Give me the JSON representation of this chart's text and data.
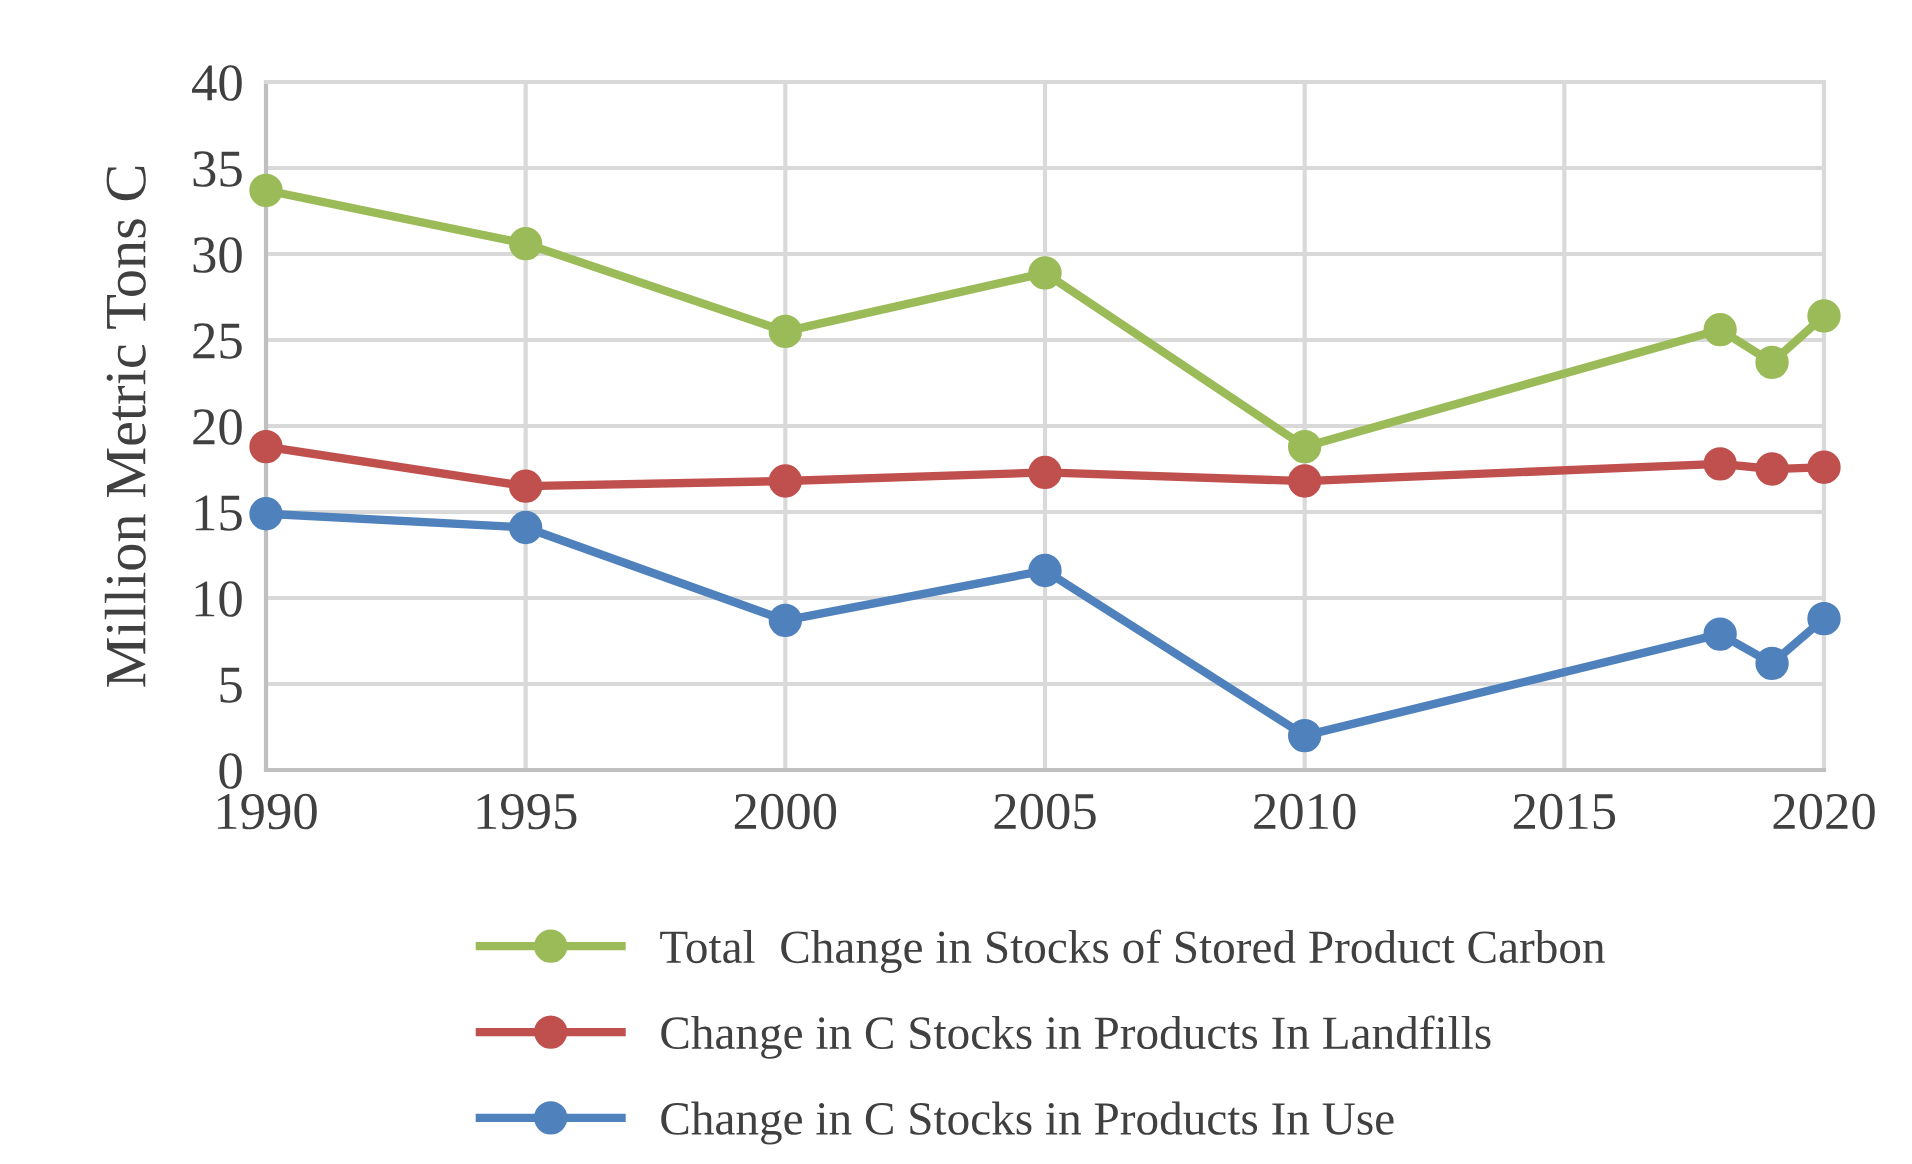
{
  "chart_data": {
    "type": "line",
    "ylabel": "Million Metric Tons C",
    "x": [
      1990,
      1995,
      2000,
      2005,
      2010,
      2018,
      2019,
      2020
    ],
    "xlim": [
      1990,
      2020
    ],
    "xticks": [
      1990,
      1995,
      2000,
      2005,
      2010,
      2015,
      2020
    ],
    "ylim": [
      0,
      40
    ],
    "yticks": [
      0,
      5,
      10,
      15,
      20,
      25,
      30,
      35,
      40
    ],
    "grid": true,
    "legend": "bottom",
    "marker": "circle",
    "line_style": "solid",
    "series": [
      {
        "name": "Total  Change in Stocks of Stored Product Carbon",
        "color": "#9bbb59",
        "values": [
          33.7,
          30.6,
          25.5,
          28.9,
          18.8,
          25.6,
          23.7,
          26.4
        ]
      },
      {
        "name": "Change in C Stocks in Products In Landfills",
        "color": "#c0504d",
        "values": [
          18.8,
          16.5,
          16.8,
          17.3,
          16.8,
          17.8,
          17.5,
          17.6
        ]
      },
      {
        "name": "Change in C Stocks in Products In Use",
        "color": "#4f81bd",
        "values": [
          14.9,
          14.1,
          8.7,
          11.6,
          2.0,
          7.9,
          6.2,
          8.8
        ]
      }
    ]
  }
}
